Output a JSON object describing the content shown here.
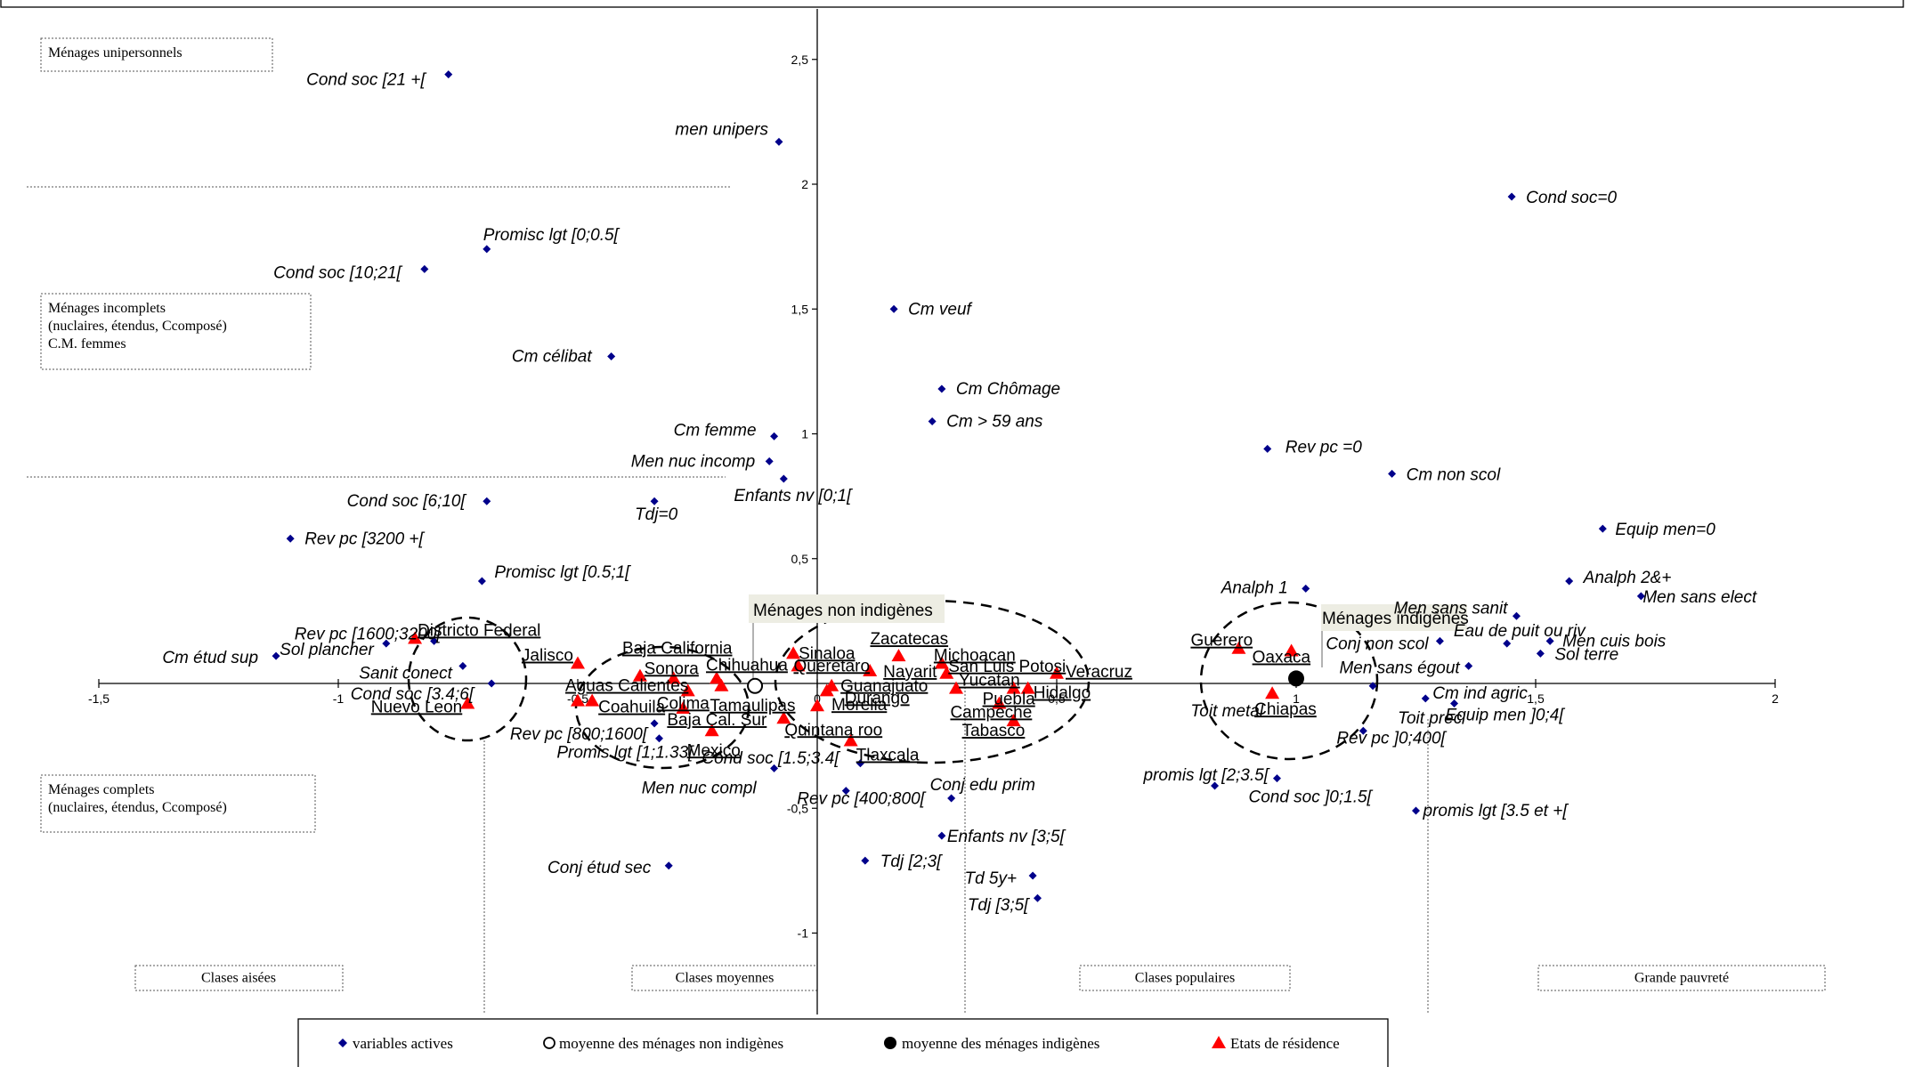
{
  "chart_data": {
    "type": "scatter",
    "xlim": [
      -1.5,
      2
    ],
    "ylim": [
      -1.2,
      2.7
    ],
    "x_ticks": [
      {
        "value": -1.5,
        "label": "-1,5"
      },
      {
        "value": -1,
        "label": "-1"
      },
      {
        "value": -0.5,
        "label": "-0,5"
      },
      {
        "value": 0,
        "label": "0"
      },
      {
        "value": 0.5,
        "label": "0,5"
      },
      {
        "value": 1,
        "label": "1"
      },
      {
        "value": 1.5,
        "label": "1,5"
      },
      {
        "value": 2,
        "label": "2"
      }
    ],
    "y_ticks": [
      {
        "value": 2.5,
        "label": "2,5"
      },
      {
        "value": 2,
        "label": "2"
      },
      {
        "value": 1.5,
        "label": "1,5"
      },
      {
        "value": 1,
        "label": "1"
      },
      {
        "value": 0.5,
        "label": "0,5"
      },
      {
        "value": -0.5,
        "label": "-0,5"
      },
      {
        "value": -1,
        "label": "-1"
      }
    ],
    "active_variables": [
      {
        "label": "Cond soc [21 +[",
        "x": -0.77,
        "y": 2.44
      },
      {
        "label": "men unipers",
        "x": -0.08,
        "y": 2.17
      },
      {
        "label": "Promisc lgt  [0;0.5[",
        "x": -0.69,
        "y": 1.74
      },
      {
        "label": "Cond soc [10;21[",
        "x": -0.82,
        "y": 1.66
      },
      {
        "label": "Cm célibat",
        "x": -0.43,
        "y": 1.31
      },
      {
        "label": "Cm veuf",
        "x": 0.16,
        "y": 1.5
      },
      {
        "label": "Cm Chômage",
        "x": 0.26,
        "y": 1.18
      },
      {
        "label": "Cm > 59 ans",
        "x": 0.24,
        "y": 1.05
      },
      {
        "label": "Cm femme",
        "x": -0.09,
        "y": 0.99
      },
      {
        "label": "Men nuc incomp",
        "x": -0.1,
        "y": 0.89
      },
      {
        "label": "Enfants nv [0;1[",
        "x": -0.07,
        "y": 0.82
      },
      {
        "label": "Cond soc [6;10[",
        "x": -0.69,
        "y": 0.73
      },
      {
        "label": "Tdj=0",
        "x": -0.34,
        "y": 0.73
      },
      {
        "label": "Rev pc [3200 +[",
        "x": -1.1,
        "y": 0.58
      },
      {
        "label": "Promisc lgt  [0.5;1[",
        "x": -0.7,
        "y": 0.41
      },
      {
        "label": "Rev pc [1600;3200[",
        "x": -0.8,
        "y": 0.17
      },
      {
        "label": "Sol plancher",
        "x": -0.9,
        "y": 0.16
      },
      {
        "label": "Cm étud sup",
        "x": -1.13,
        "y": 0.11
      },
      {
        "label": "Sanit conect",
        "x": -0.74,
        "y": 0.07
      },
      {
        "label": "Cond soc [3.4;6[",
        "x": -0.68,
        "y": 0.0
      },
      {
        "label": "Rev pc [800;1600[",
        "x": -0.34,
        "y": -0.16
      },
      {
        "label": "Promis lgt [1;1.33[",
        "x": -0.33,
        "y": -0.22
      },
      {
        "label": "Men nuc compl",
        "x": -0.09,
        "y": -0.34
      },
      {
        "label": "Conj étud sec",
        "x": -0.31,
        "y": -0.73
      },
      {
        "label": "Cond soc [1.5;3.4[",
        "x": 0.09,
        "y": -0.32
      },
      {
        "label": "Rev pc [400;800[",
        "x": 0.06,
        "y": -0.43
      },
      {
        "label": "Conj edu prim",
        "x": 0.28,
        "y": -0.46
      },
      {
        "label": "Enfants nv [3;5[",
        "x": 0.26,
        "y": -0.61
      },
      {
        "label": "Tdj [2;3[",
        "x": 0.1,
        "y": -0.71
      },
      {
        "label": "Td 5y+",
        "x": 0.45,
        "y": -0.77
      },
      {
        "label": "Tdj [3;5[",
        "x": 0.46,
        "y": -0.86
      },
      {
        "label": "Rev pc =0",
        "x": 0.94,
        "y": 0.94
      },
      {
        "label": "Cm non scol",
        "x": 1.2,
        "y": 0.84
      },
      {
        "label": "Cond soc=0",
        "x": 1.45,
        "y": 1.95
      },
      {
        "label": "Equip men=0",
        "x": 1.64,
        "y": 0.62
      },
      {
        "label": "Analph 1",
        "x": 1.02,
        "y": 0.38
      },
      {
        "label": "Analph 2&+",
        "x": 1.57,
        "y": 0.41
      },
      {
        "label": "Men sans elect",
        "x": 1.72,
        "y": 0.35
      },
      {
        "label": "Men sans sanit",
        "x": 1.46,
        "y": 0.27
      },
      {
        "label": "Eau de puit ou riv",
        "x": 1.44,
        "y": 0.16
      },
      {
        "label": "Men cuis bois",
        "x": 1.53,
        "y": 0.17
      },
      {
        "label": "Sol terre",
        "x": 1.51,
        "y": 0.12
      },
      {
        "label": "Conj non scol",
        "x": 1.3,
        "y": 0.17
      },
      {
        "label": "Men sans égout",
        "x": 1.36,
        "y": 0.07
      },
      {
        "label": "Toit metal",
        "x": 0.95,
        "y": -0.04
      },
      {
        "label": "Cm ind agric",
        "x": 1.27,
        "y": -0.06
      },
      {
        "label": "Equip men ]0;4[",
        "x": 1.33,
        "y": -0.08
      },
      {
        "label": "Toit prec",
        "x": 1.16,
        "y": -0.01
      },
      {
        "label": "Rev pc ]0;400[",
        "x": 1.14,
        "y": -0.19
      },
      {
        "label": "promis lgt [2;3.5[",
        "x": 0.83,
        "y": -0.41
      },
      {
        "label": "Cond soc ]0;1.5[",
        "x": 0.96,
        "y": -0.38
      },
      {
        "label": "promis lgt [3.5 et +[",
        "x": 1.25,
        "y": -0.51
      }
    ],
    "states": [
      {
        "label": "Districto Federal",
        "x": -0.84,
        "y": 0.18
      },
      {
        "label": "Nuevo Leon",
        "x": -0.73,
        "y": -0.08
      },
      {
        "label": "Aguas Calientes",
        "x": -0.5,
        "y": -0.07
      },
      {
        "label": "Jalisco",
        "x": -0.5,
        "y": 0.08
      },
      {
        "label": "Coahuila",
        "x": -0.47,
        "y": -0.07
      },
      {
        "label": "Baja California",
        "x": -0.37,
        "y": 0.03
      },
      {
        "label": "Sonora",
        "x": -0.3,
        "y": 0.02
      },
      {
        "label": "Colima",
        "x": -0.27,
        "y": -0.03
      },
      {
        "label": "Chihuahua",
        "x": -0.21,
        "y": 0.02
      },
      {
        "label": "Tamaulipas",
        "x": -0.2,
        "y": -0.01
      },
      {
        "label": "Baja Cal. Sur",
        "x": -0.28,
        "y": -0.1
      },
      {
        "label": "Mexico",
        "x": -0.22,
        "y": -0.19
      },
      {
        "label": "Quintana roo",
        "x": -0.07,
        "y": -0.14
      },
      {
        "label": "Sinaloa",
        "x": -0.05,
        "y": 0.12
      },
      {
        "label": "Queretaro",
        "x": -0.04,
        "y": 0.07
      },
      {
        "label": "Guanajuato",
        "x": 0.03,
        "y": -0.01
      },
      {
        "label": "Durango",
        "x": 0.02,
        "y": -0.03
      },
      {
        "label": "Morelia",
        "x": 0.0,
        "y": -0.09
      },
      {
        "label": "Zacatecas",
        "x": 0.17,
        "y": 0.11
      },
      {
        "label": "Nayarit",
        "x": 0.11,
        "y": 0.05
      },
      {
        "label": "Tlaxcala",
        "x": 0.07,
        "y": -0.23
      },
      {
        "label": "Michoacan",
        "x": 0.26,
        "y": 0.08
      },
      {
        "label": "San Luis Potosi",
        "x": 0.27,
        "y": 0.04
      },
      {
        "label": "Yucatan",
        "x": 0.29,
        "y": -0.02
      },
      {
        "label": "Veracruz",
        "x": 0.5,
        "y": 0.04
      },
      {
        "label": "Hidalgo",
        "x": 0.44,
        "y": -0.02
      },
      {
        "label": "Puebla",
        "x": 0.41,
        "y": -0.02
      },
      {
        "label": "Campeche",
        "x": 0.38,
        "y": -0.08
      },
      {
        "label": "Tabasco",
        "x": 0.41,
        "y": -0.15
      },
      {
        "label": "Guerero",
        "x": 0.88,
        "y": 0.14
      },
      {
        "label": "Oaxaca",
        "x": 0.99,
        "y": 0.13
      },
      {
        "label": "Chiapas",
        "x": 0.95,
        "y": -0.04
      }
    ],
    "mean_non_indigenous": {
      "x": -0.13,
      "y": -0.01
    },
    "mean_indigenous": {
      "x": 1.0,
      "y": 0.02
    },
    "annotations": [
      {
        "label": "Ménages non indigènes"
      },
      {
        "label": "Ménages indigènes"
      }
    ],
    "household_groups": [
      {
        "label": "Ménages unipersonnels"
      },
      {
        "label": "Ménages incomplets"
      },
      {
        "label": "(nuclaires, étendus, Ccomposé)"
      },
      {
        "label": "C.M. femmes"
      },
      {
        "label": "Ménages complets"
      },
      {
        "label": "(nuclaires, étendus, Ccomposé)"
      }
    ],
    "classes": [
      {
        "label": "Clases aisées"
      },
      {
        "label": "Clases moyennes"
      },
      {
        "label": "Clases populaires"
      },
      {
        "label": "Grande pauvreté"
      }
    ],
    "legend": [
      {
        "key": "active",
        "label": "variables actives"
      },
      {
        "key": "nonind",
        "label": "moyenne des ménages non indigènes"
      },
      {
        "key": "ind",
        "label": "moyenne des ménages indigènes"
      },
      {
        "key": "states",
        "label": "Etats de résidence"
      }
    ],
    "colors": {
      "active": "#00008B",
      "states": "#FF0000",
      "ind": "#000000",
      "nonind": "#FFFFFF"
    }
  }
}
